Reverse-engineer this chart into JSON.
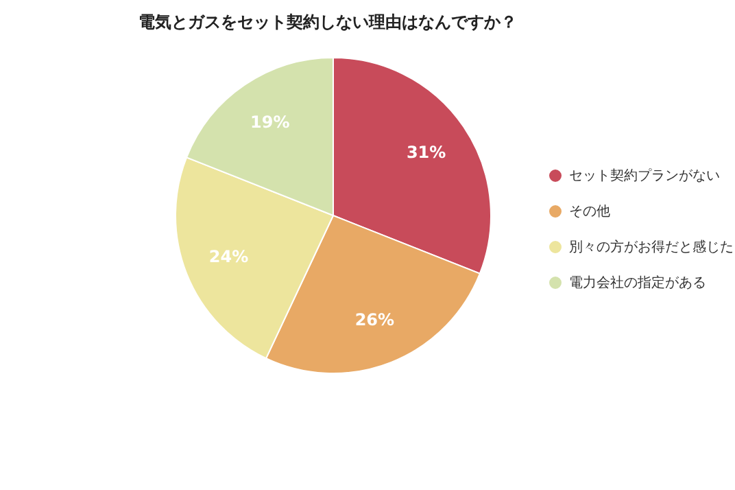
{
  "chart_data": {
    "type": "pie",
    "title": "電気とガスをセット契約しない理由はなんですか？",
    "categories": [
      "セット契約プランがない",
      "その他",
      "別々の方がお得だと感じた",
      "電力会社の指定がある"
    ],
    "values": [
      31,
      26,
      24,
      19
    ],
    "colors": [
      "#c84b5a",
      "#e8a965",
      "#ede59d",
      "#d4e2ad"
    ],
    "value_labels": [
      "31%",
      "26%",
      "24%",
      "19%"
    ],
    "legend": "right"
  }
}
